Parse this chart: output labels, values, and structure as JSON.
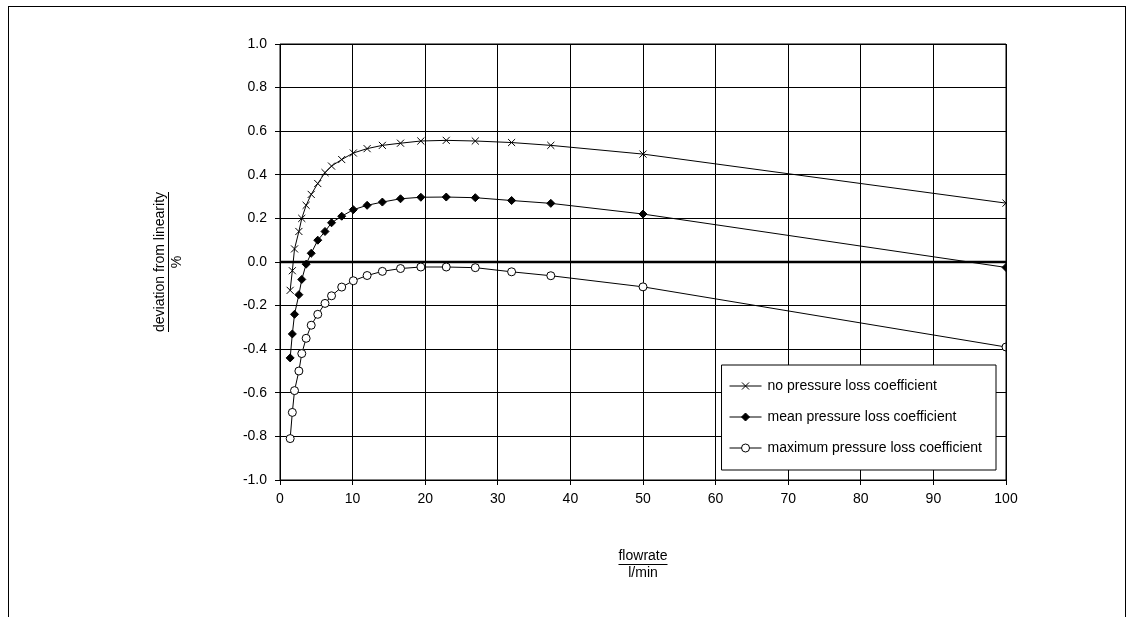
{
  "chart_data": {
    "type": "line",
    "xlabel": "flowrate\nl/min",
    "ylabel": "deviation from linearity\n%",
    "x": [
      1.4,
      1.7,
      2.0,
      2.6,
      3.0,
      3.6,
      4.3,
      5.2,
      6.2,
      7.1,
      8.5,
      10.1,
      12.0,
      14.1,
      16.6,
      19.4,
      22.9,
      26.9,
      31.9,
      37.3,
      50,
      100
    ],
    "series": [
      {
        "name": "no pressure loss coefficient",
        "color": "#000000",
        "marker": "cross",
        "values": [
          -0.13,
          -0.04,
          0.06,
          0.14,
          0.2,
          0.26,
          0.31,
          0.36,
          0.41,
          0.44,
          0.47,
          0.5,
          0.52,
          0.535,
          0.545,
          0.555,
          0.558,
          0.555,
          0.548,
          0.535,
          0.495,
          0.27
        ]
      },
      {
        "name": "mean pressure loss coefficient",
        "color": "#000000",
        "marker": "diamond",
        "values": [
          -0.44,
          -0.33,
          -0.24,
          -0.15,
          -0.08,
          -0.01,
          0.04,
          0.1,
          0.14,
          0.18,
          0.21,
          0.24,
          0.26,
          0.275,
          0.29,
          0.297,
          0.298,
          0.295,
          0.282,
          0.269,
          0.22,
          -0.025
        ]
      },
      {
        "name": "maximum pressure loss coefficient",
        "color": "#000000",
        "marker": "circle",
        "values": [
          -0.81,
          -0.69,
          -0.59,
          -0.5,
          -0.42,
          -0.35,
          -0.29,
          -0.24,
          -0.19,
          -0.155,
          -0.115,
          -0.086,
          -0.062,
          -0.043,
          -0.03,
          -0.023,
          -0.023,
          -0.026,
          -0.045,
          -0.063,
          -0.114,
          -0.39
        ]
      }
    ],
    "xlim": [
      0,
      100
    ],
    "xticks": [
      0,
      10,
      20,
      30,
      40,
      50,
      60,
      70,
      80,
      90,
      100
    ],
    "ylim": [
      -1,
      1
    ],
    "yticks": [
      {
        "value": -1,
        "label": "-1.0"
      },
      {
        "value": -0.8,
        "label": "-0.8"
      },
      {
        "value": -0.6,
        "label": "-0.6"
      },
      {
        "value": -0.4,
        "label": "-0.4"
      },
      {
        "value": -0.2,
        "label": "-0.2"
      },
      {
        "value": 0,
        "label": "0.0"
      },
      {
        "value": 0.2,
        "label": "0.2"
      },
      {
        "value": 0.4,
        "label": "0.4"
      },
      {
        "value": 0.6,
        "label": "0.6"
      },
      {
        "value": 0.8,
        "label": "0.8"
      },
      {
        "value": 1,
        "label": "1.0"
      }
    ],
    "ref_lines": [
      {
        "axis": "y",
        "value": 0,
        "color": "#000000"
      }
    ],
    "grid": true,
    "legend": "bottom right",
    "line_style": "solid"
  }
}
